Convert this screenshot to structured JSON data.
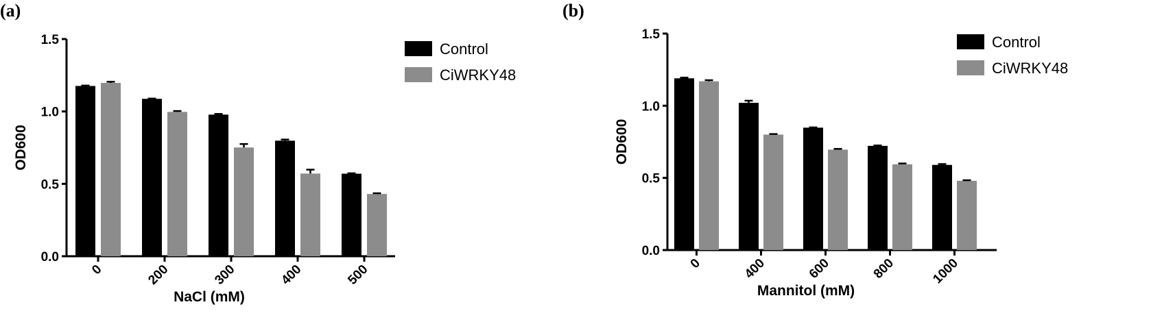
{
  "chart_data": [
    {
      "type": "bar",
      "panel_label": "(a)",
      "xlabel": "NaCl (mM)",
      "ylabel": "OD600",
      "ylim": [
        0,
        1.5
      ],
      "yticks": [
        "0.0",
        "0.5",
        "1.0",
        "1.5"
      ],
      "categories": [
        "0",
        "200",
        "300",
        "400",
        "500"
      ],
      "grid": false,
      "legend": "right",
      "series": [
        {
          "name": "Control",
          "color": "#000000",
          "values": [
            1.176,
            1.087,
            0.978,
            0.798,
            0.57
          ],
          "errors": [
            0.003,
            0.002,
            0.005,
            0.008,
            0.003
          ]
        },
        {
          "name": "CiWRKY48",
          "color": "#8c8c8c",
          "values": [
            1.197,
            0.997,
            0.751,
            0.571,
            0.43
          ],
          "errors": [
            0.008,
            0.006,
            0.024,
            0.027,
            0.005
          ]
        }
      ]
    },
    {
      "type": "bar",
      "panel_label": "(b)",
      "xlabel": "Mannitol (mM)",
      "ylabel": "OD600",
      "ylim": [
        0,
        1.5
      ],
      "yticks": [
        "0.0",
        "0.5",
        "1.0",
        "1.5"
      ],
      "categories": [
        "0",
        "400",
        "600",
        "800",
        "1000"
      ],
      "grid": false,
      "legend": "right",
      "series": [
        {
          "name": "Control",
          "color": "#000000",
          "values": [
            1.19,
            1.02,
            0.848,
            0.722,
            0.59
          ],
          "errors": [
            0.005,
            0.015,
            0.002,
            0.003,
            0.006
          ]
        },
        {
          "name": "CiWRKY48",
          "color": "#8c8c8c",
          "values": [
            1.169,
            0.8,
            0.696,
            0.594,
            0.48
          ],
          "errors": [
            0.008,
            0.004,
            0.005,
            0.006,
            0.004
          ]
        }
      ]
    }
  ]
}
